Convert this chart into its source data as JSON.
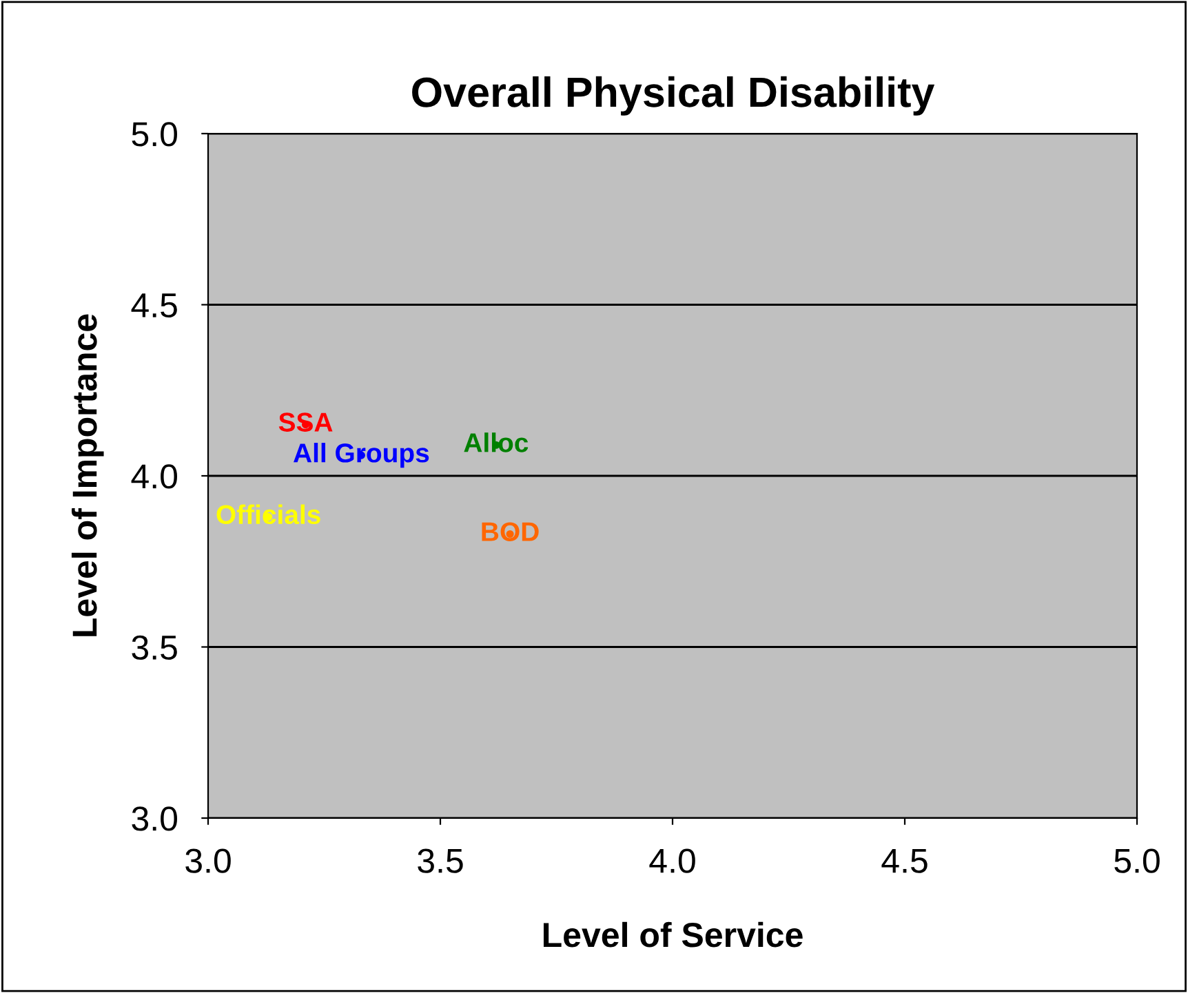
{
  "chart_data": {
    "type": "scatter",
    "title": "Overall Physical Disability",
    "xlabel": "Level of Service",
    "ylabel": "Level of Importance",
    "series": [
      {
        "name": "SSA",
        "color": "#ff0000",
        "x": [
          3.21
        ],
        "values": [
          4.15
        ]
      },
      {
        "name": "All Groups",
        "color": "#0000ff",
        "x": [
          3.33
        ],
        "values": [
          4.06
        ]
      },
      {
        "name": "Alloc",
        "color": "#008000",
        "x": [
          3.62
        ],
        "values": [
          4.09
        ]
      },
      {
        "name": "Officials",
        "color": "#ffff00",
        "x": [
          3.13
        ],
        "values": [
          3.88
        ]
      },
      {
        "name": "BOD",
        "color": "#ff6600",
        "x": [
          3.65
        ],
        "values": [
          3.83
        ]
      }
    ],
    "xlim": [
      3.0,
      5.0
    ],
    "ylim": [
      3.0,
      5.0
    ],
    "xticks": [
      {
        "value": 3.0,
        "label": "3.0"
      },
      {
        "value": 3.5,
        "label": "3.5"
      },
      {
        "value": 4.0,
        "label": "4.0"
      },
      {
        "value": 4.5,
        "label": "4.5"
      },
      {
        "value": 5.0,
        "label": "5.0"
      }
    ],
    "yticks": [
      {
        "value": 3.0,
        "label": "3.0"
      },
      {
        "value": 3.5,
        "label": "3.5"
      },
      {
        "value": 4.0,
        "label": "4.0"
      },
      {
        "value": 4.5,
        "label": "4.5"
      },
      {
        "value": 5.0,
        "label": "5.0"
      }
    ],
    "grid": "y"
  }
}
